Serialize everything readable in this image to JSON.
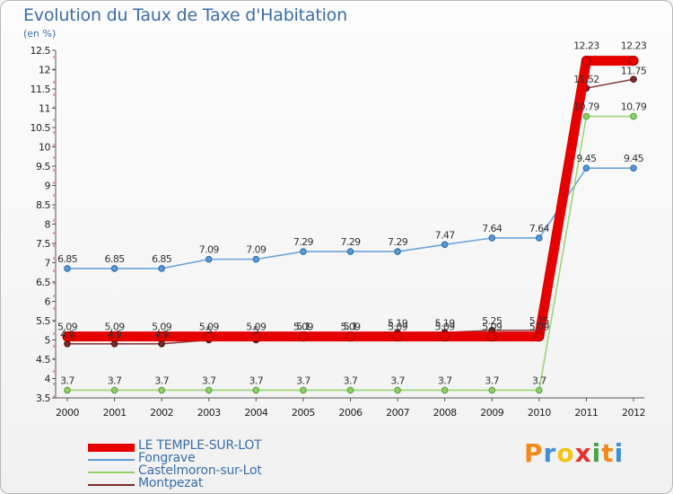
{
  "header": {
    "title": "Evolution du Taux de Taxe d'Habitation",
    "unit": "(en %)"
  },
  "logo": {
    "text": "Proxiti",
    "colors": [
      "#f08a1c",
      "#3d8fd6",
      "#f0c419",
      "#e6312e",
      "#4aa54a",
      "#f08a1c",
      "#3d8fd6"
    ]
  },
  "chart_data": {
    "type": "line",
    "x": [
      "2000",
      "2001",
      "2002",
      "2003",
      "2004",
      "2005",
      "2006",
      "2007",
      "2008",
      "2009",
      "2010",
      "2011",
      "2012"
    ],
    "yticks": [
      "3.5",
      "4",
      "4.5",
      "5",
      "5.5",
      "6",
      "6.5",
      "7",
      "7.5",
      "8",
      "8.5",
      "9",
      "9.5",
      "10",
      "10.5",
      "11",
      "11.5",
      "12",
      "12.5"
    ],
    "ylim": [
      3.5,
      12.5
    ],
    "grid": false,
    "legend_position": "bottom-left",
    "series": [
      {
        "name": "LE TEMPLE-SUR-LOT",
        "color": "#e60000",
        "values": [
          5.09,
          5.09,
          5.09,
          5.09,
          5.09,
          5.09,
          5.09,
          5.09,
          5.09,
          5.09,
          5.09,
          12.23,
          12.23
        ],
        "labels": [
          "5.09",
          "5.09",
          "5.09",
          "5.09",
          "5.09",
          "5.09",
          "5.09",
          "5.09",
          "5.09",
          "5.09",
          "5.09",
          "12.23",
          "12.23"
        ]
      },
      {
        "name": "Fongrave",
        "color": "#5b9bd5",
        "values": [
          6.85,
          6.85,
          6.85,
          7.09,
          7.09,
          7.29,
          7.29,
          7.29,
          7.47,
          7.64,
          7.64,
          9.45,
          9.45
        ],
        "labels": [
          "6.85",
          "6.85",
          "6.85",
          "7.09",
          "7.09",
          "7.29",
          "7.29",
          "7.29",
          "7.47",
          "7.64",
          "7.64",
          "9.45",
          "9.45"
        ]
      },
      {
        "name": "Castelmoron-sur-Lot",
        "color": "#8fd16a",
        "values": [
          3.7,
          3.7,
          3.7,
          3.7,
          3.7,
          3.7,
          3.7,
          3.7,
          3.7,
          3.7,
          3.7,
          10.79,
          10.79
        ],
        "labels": [
          "3.7",
          "3.7",
          "3.7",
          "3.7",
          "3.7",
          "3.7",
          "3.7",
          "3.7",
          "3.7",
          "3.7",
          "3.7",
          "10.79",
          "10.79"
        ]
      },
      {
        "name": "Montpezat",
        "color": "#7b2a2a",
        "values": [
          4.9,
          4.9,
          4.9,
          5.0,
          5.0,
          5.1,
          5.1,
          5.19,
          5.19,
          5.25,
          5.25,
          11.52,
          11.75
        ],
        "labels": [
          "4.9",
          "4.9",
          "4.9",
          "5",
          "5",
          "5.1",
          "5.1",
          "5.19",
          "5.19",
          "5.25",
          "5.25",
          "11.52",
          "11.75"
        ]
      }
    ]
  }
}
